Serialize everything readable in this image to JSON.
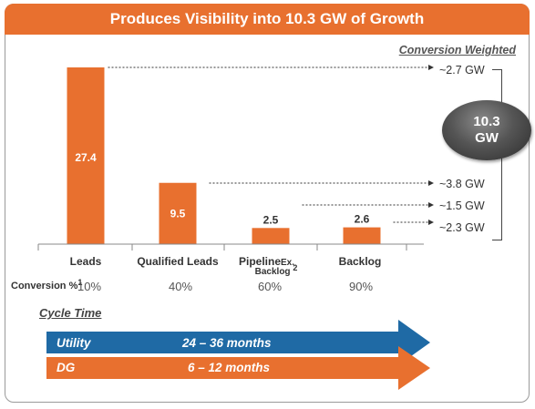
{
  "header": {
    "title": "Produces Visibility into 10.3 GW of Growth"
  },
  "weighted_label": "Conversion Weighted",
  "weighted_values": [
    "~2.7 GW",
    "~3.8 GW",
    "~1.5 GW",
    "~2.3 GW"
  ],
  "total": {
    "line1": "10.3",
    "line2": "GW"
  },
  "conversion": {
    "label": "Conversion %",
    "footnote": "1",
    "values": [
      "10%",
      "40%",
      "60%",
      "90%"
    ]
  },
  "category_extras": {
    "pipeline_suffix": "Ex.",
    "pipeline_line2": "Backlog",
    "pipeline_footnote": "2"
  },
  "cycle": {
    "title": "Cycle Time",
    "rows": [
      {
        "name": "Utility",
        "range": "24 – 36 months",
        "color": "#1f6aa5"
      },
      {
        "name": "DG",
        "range": "6 – 12 months",
        "color": "#e8702f"
      }
    ]
  },
  "colors": {
    "accent": "#e8702f",
    "dark": "#444444"
  },
  "chart_data": {
    "type": "bar",
    "categories": [
      "Leads",
      "Qualified Leads",
      "Pipeline",
      "Backlog"
    ],
    "values": [
      27.4,
      9.5,
      2.5,
      2.6
    ],
    "data_labels": [
      "27.4",
      "9.5",
      "2.5",
      "2.6"
    ],
    "color": "#e8702f",
    "grid": false,
    "legend": "none"
  }
}
